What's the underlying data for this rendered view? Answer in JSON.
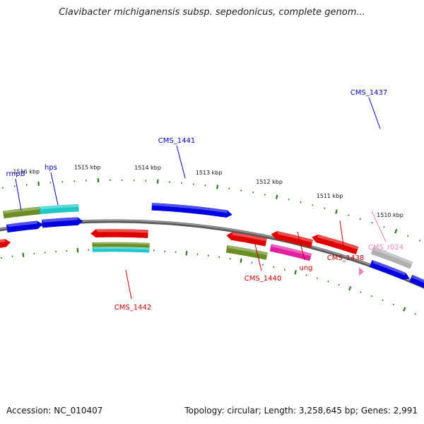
{
  "title": "Clavibacter michiganensis subsp. sepedonicus, complete genom...",
  "footer": {
    "accession": "Accession: NC_010407",
    "stats": "Topology: circular; Length: 3,258,645 bp; Genes: 2,991"
  },
  "colors": {
    "backbone": "#808080",
    "tick_track": "#2a7a1a",
    "cds_blue": "#0000e0",
    "cds_red": "#e00000",
    "cds_olive": "#6b8e23",
    "cds_cyan": "#20c8c8",
    "cds_magenta": "#e020a0",
    "cds_grey": "#b0b0b0",
    "rna_pink": "#f080c0",
    "label_blue": "#0000c0",
    "label_red": "#c00000",
    "label_pink": "#f080c0"
  },
  "scale_labels": [
    "1516 kbp",
    "1515 kbp",
    "1514 kbp",
    "1513 kbp",
    "1512 kbp",
    "1511 kbp",
    "1510 kbp"
  ],
  "gene_labels": [
    {
      "text": "rmpB",
      "color": "label_blue"
    },
    {
      "text": "hps",
      "color": "label_blue"
    },
    {
      "text": "CMS_1441",
      "color": "label_blue"
    },
    {
      "text": "CMS_1437",
      "color": "label_blue"
    },
    {
      "text": "CMS_1442",
      "color": "label_red"
    },
    {
      "text": "CMS_1440",
      "color": "label_red"
    },
    {
      "text": "ung",
      "color": "label_red"
    },
    {
      "text": "CMS_1438",
      "color": "label_red"
    },
    {
      "text": "CMS_r024",
      "color": "label_pink"
    }
  ]
}
